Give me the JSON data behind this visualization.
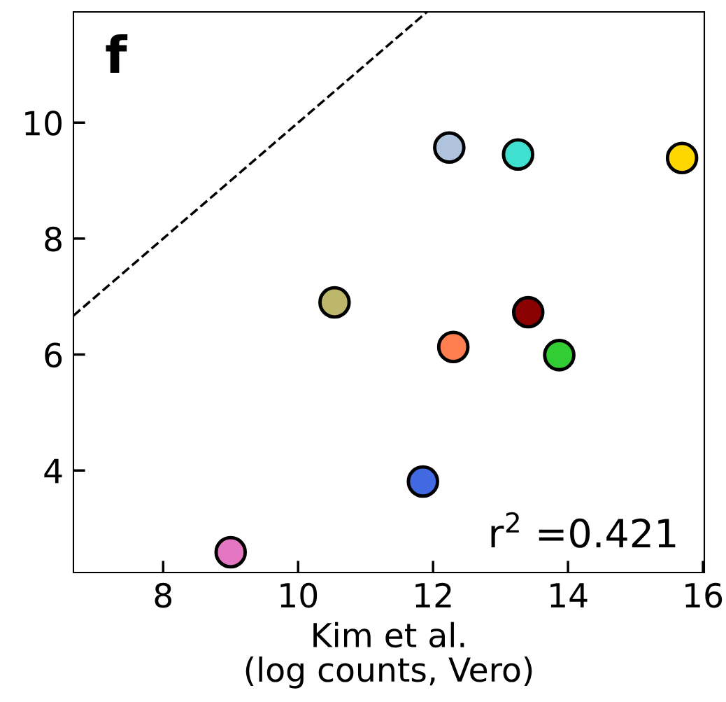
{
  "chart_data": {
    "type": "scatter",
    "xlabel": "Kim et al.\n(log counts, Vero)",
    "xlim": [
      6.67,
      16.02
    ],
    "ylim": [
      2.24,
      11.91
    ],
    "xticks": [
      8,
      10,
      12,
      14,
      16
    ],
    "yticks": [
      4,
      6,
      8,
      10
    ],
    "grid": false,
    "marker": "circle",
    "tick_labels": "xy",
    "series": [
      {
        "type": "line",
        "x": [
          6.67,
          11.91
        ],
        "values": [
          6.67,
          11.91
        ],
        "color": "#000000",
        "line_style": "dashed",
        "marker": "none"
      },
      {
        "type": "scatter",
        "x": [
          9.0,
          11.85,
          10.54,
          12.3,
          12.24,
          13.26,
          13.41,
          13.87,
          15.69
        ],
        "values": [
          2.59,
          3.81,
          6.9,
          6.13,
          9.57,
          9.45,
          6.73,
          5.99,
          9.39
        ],
        "colors": [
          "#e377c2",
          "#4169e1",
          "#bdb76b",
          "#ff7f50",
          "#b0c4de",
          "#40e0d0",
          "#8b0000",
          "#32cd32",
          "#ffd700"
        ]
      }
    ],
    "annotations": [
      "f",
      "r$^{2}$ =0.421"
    ]
  }
}
